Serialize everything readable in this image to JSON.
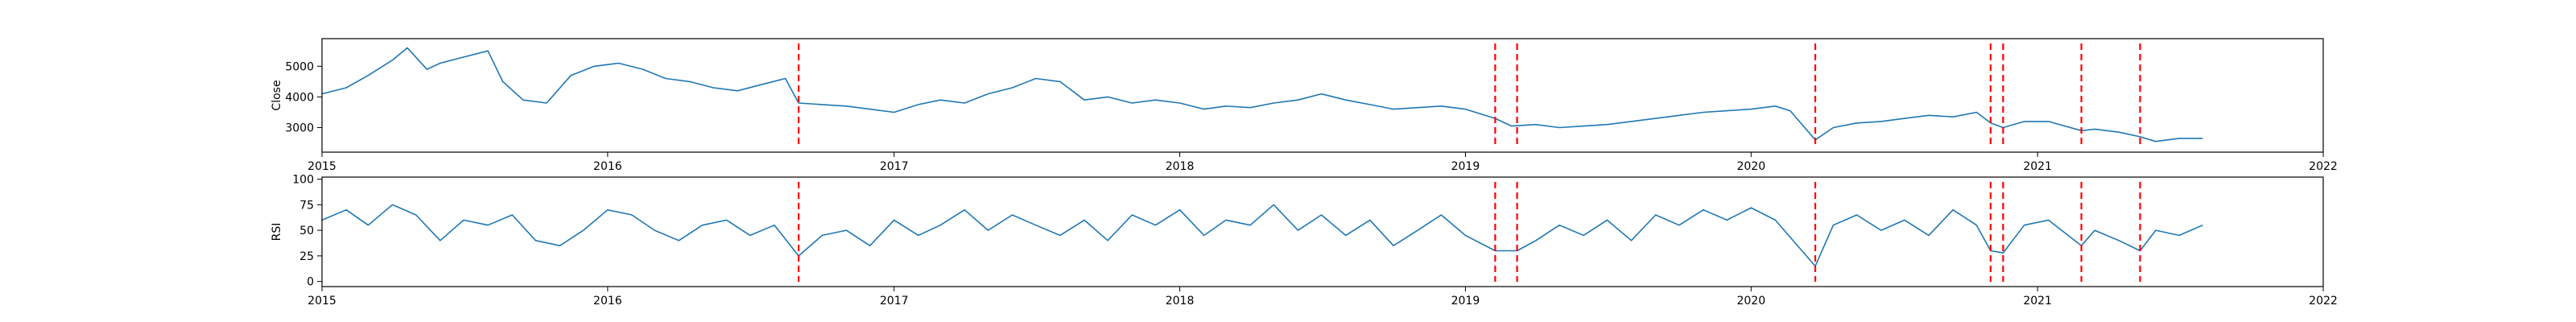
{
  "colors": {
    "series": "#1f77b4",
    "events": "#ff0000"
  },
  "chart_data": [
    {
      "type": "line",
      "title": "",
      "xlabel": "",
      "ylabel": "Close",
      "xlim": [
        "2015-01-01",
        "2022-01-01"
      ],
      "ylim": [
        2200,
        5900
      ],
      "x_ticks": [
        "2015",
        "2016",
        "2017",
        "2018",
        "2019",
        "2020",
        "2021",
        "2022"
      ],
      "y_ticks": [
        3000,
        4000,
        5000
      ],
      "grid": false,
      "vertical_markers": [
        "2016-09-01",
        "2019-02-08",
        "2019-03-08",
        "2020-03-23",
        "2020-11-02",
        "2020-11-18",
        "2021-02-26",
        "2021-05-12"
      ],
      "series": [
        {
          "x": [
            "2015-01-01",
            "2015-02-01",
            "2015-03-01",
            "2015-04-01",
            "2015-04-20",
            "2015-05-15",
            "2015-06-01",
            "2015-07-01",
            "2015-08-01",
            "2015-08-20",
            "2015-09-15",
            "2015-10-15",
            "2015-11-15",
            "2015-12-15",
            "2016-01-15",
            "2016-02-15",
            "2016-03-15",
            "2016-04-15",
            "2016-05-15",
            "2016-06-15",
            "2016-07-15",
            "2016-08-15",
            "2016-09-01",
            "2016-10-01",
            "2016-11-01",
            "2016-12-01",
            "2017-01-01",
            "2017-02-01",
            "2017-03-01",
            "2017-04-01",
            "2017-05-01",
            "2017-06-01",
            "2017-07-01",
            "2017-08-01",
            "2017-09-01",
            "2017-10-01",
            "2017-11-01",
            "2017-12-01",
            "2018-01-01",
            "2018-02-01",
            "2018-03-01",
            "2018-04-01",
            "2018-05-01",
            "2018-06-01",
            "2018-07-01",
            "2018-08-01",
            "2018-09-01",
            "2018-10-01",
            "2018-11-01",
            "2018-12-01",
            "2019-01-01",
            "2019-02-08",
            "2019-03-01",
            "2019-04-01",
            "2019-05-01",
            "2019-06-01",
            "2019-07-01",
            "2019-08-01",
            "2019-09-01",
            "2019-10-01",
            "2019-11-01",
            "2019-12-01",
            "2020-01-01",
            "2020-02-01",
            "2020-02-20",
            "2020-03-23",
            "2020-04-15",
            "2020-05-15",
            "2020-06-15",
            "2020-07-15",
            "2020-08-15",
            "2020-09-15",
            "2020-10-15",
            "2020-11-02",
            "2020-11-18",
            "2020-12-15",
            "2021-01-15",
            "2021-02-26",
            "2021-03-15",
            "2021-04-15",
            "2021-05-12",
            "2021-06-01",
            "2021-07-01",
            "2021-07-31"
          ],
          "values": [
            4100,
            4300,
            4700,
            5200,
            5600,
            4900,
            5100,
            5300,
            5500,
            4500,
            3900,
            3800,
            4700,
            5000,
            5100,
            4900,
            4600,
            4500,
            4300,
            4200,
            4400,
            4600,
            3800,
            3750,
            3700,
            3600,
            3500,
            3750,
            3900,
            3800,
            4100,
            4300,
            4600,
            4500,
            3900,
            4000,
            3800,
            3900,
            3800,
            3600,
            3700,
            3650,
            3800,
            3900,
            4100,
            3900,
            3750,
            3600,
            3650,
            3700,
            3600,
            3300,
            3050,
            3100,
            3000,
            3050,
            3100,
            3200,
            3300,
            3400,
            3500,
            3550,
            3600,
            3700,
            3550,
            2600,
            3000,
            3150,
            3200,
            3300,
            3400,
            3350,
            3500,
            3150,
            3000,
            3200,
            3200,
            2900,
            2950,
            2850,
            2700,
            2550,
            2650,
            2650
          ]
        }
      ]
    },
    {
      "type": "line",
      "title": "",
      "xlabel": "",
      "ylabel": "RSI",
      "xlim": [
        "2015-01-01",
        "2022-01-01"
      ],
      "ylim": [
        -5,
        102
      ],
      "x_ticks": [
        "2015",
        "2016",
        "2017",
        "2018",
        "2019",
        "2020",
        "2021",
        "2022"
      ],
      "y_ticks": [
        0,
        25,
        50,
        75,
        100
      ],
      "grid": false,
      "vertical_markers": [
        "2016-09-01",
        "2019-02-08",
        "2019-03-08",
        "2020-03-23",
        "2020-11-02",
        "2020-11-18",
        "2021-02-26",
        "2021-05-12"
      ],
      "series": [
        {
          "x": [
            "2015-01-01",
            "2015-02-01",
            "2015-03-01",
            "2015-04-01",
            "2015-05-01",
            "2015-06-01",
            "2015-07-01",
            "2015-08-01",
            "2015-09-01",
            "2015-10-01",
            "2015-11-01",
            "2015-12-01",
            "2016-01-01",
            "2016-02-01",
            "2016-03-01",
            "2016-04-01",
            "2016-05-01",
            "2016-06-01",
            "2016-07-01",
            "2016-08-01",
            "2016-09-01",
            "2016-10-01",
            "2016-11-01",
            "2016-12-01",
            "2017-01-01",
            "2017-02-01",
            "2017-03-01",
            "2017-04-01",
            "2017-05-01",
            "2017-06-01",
            "2017-07-01",
            "2017-08-01",
            "2017-09-01",
            "2017-10-01",
            "2017-11-01",
            "2017-12-01",
            "2018-01-01",
            "2018-02-01",
            "2018-03-01",
            "2018-04-01",
            "2018-05-01",
            "2018-06-01",
            "2018-07-01",
            "2018-08-01",
            "2018-09-01",
            "2018-10-01",
            "2018-11-01",
            "2018-12-01",
            "2019-01-01",
            "2019-02-08",
            "2019-03-08",
            "2019-04-01",
            "2019-05-01",
            "2019-06-01",
            "2019-07-01",
            "2019-08-01",
            "2019-09-01",
            "2019-10-01",
            "2019-11-01",
            "2019-12-01",
            "2020-01-01",
            "2020-02-01",
            "2020-03-23",
            "2020-04-15",
            "2020-05-15",
            "2020-06-15",
            "2020-07-15",
            "2020-08-15",
            "2020-09-15",
            "2020-10-15",
            "2020-11-02",
            "2020-11-18",
            "2020-12-15",
            "2021-01-15",
            "2021-02-26",
            "2021-03-15",
            "2021-04-15",
            "2021-05-12",
            "2021-06-01",
            "2021-07-01",
            "2021-07-31"
          ],
          "values": [
            60,
            70,
            55,
            75,
            65,
            40,
            60,
            55,
            65,
            40,
            35,
            50,
            70,
            65,
            50,
            40,
            55,
            60,
            45,
            55,
            25,
            45,
            50,
            35,
            60,
            45,
            55,
            70,
            50,
            65,
            55,
            45,
            60,
            40,
            65,
            55,
            70,
            45,
            60,
            55,
            75,
            50,
            65,
            45,
            60,
            35,
            50,
            65,
            45,
            30,
            30,
            40,
            55,
            45,
            60,
            40,
            65,
            55,
            70,
            60,
            72,
            60,
            15,
            55,
            65,
            50,
            60,
            45,
            70,
            55,
            30,
            28,
            55,
            60,
            35,
            50,
            40,
            30,
            50,
            45,
            55
          ]
        }
      ]
    }
  ]
}
